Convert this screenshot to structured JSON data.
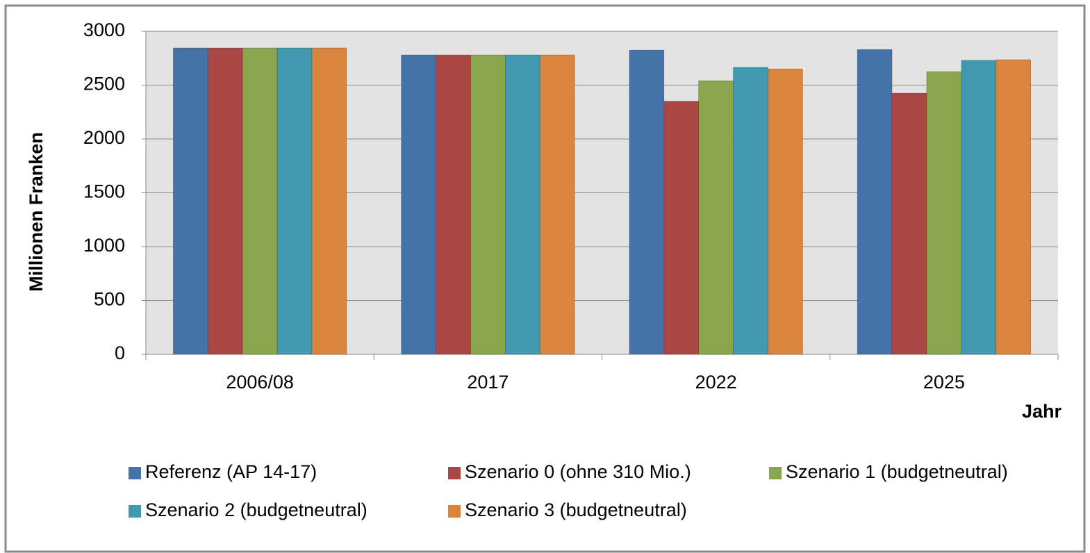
{
  "chart_data": {
    "type": "bar",
    "x_label": "Jahr",
    "y_label": "Millionen Franken",
    "categories": [
      "2006/08",
      "2017",
      "2022",
      "2025"
    ],
    "series": [
      {
        "name": "Referenz (AP 14-17)",
        "color": "#4572a7",
        "values": [
          2845,
          2780,
          2825,
          2830
        ]
      },
      {
        "name": "Szenario 0 (ohne 310 Mio.)",
        "color": "#aa4643",
        "values": [
          2845,
          2780,
          2350,
          2425
        ]
      },
      {
        "name": "Szenario 1 (budgetneutral)",
        "color": "#89a54e",
        "values": [
          2845,
          2780,
          2540,
          2625
        ]
      },
      {
        "name": "Szenario 2 (budgetneutral)",
        "color": "#4198af",
        "values": [
          2845,
          2780,
          2665,
          2730
        ]
      },
      {
        "name": "Szenario 3 (budgetneutral)",
        "color": "#db843d",
        "values": [
          2845,
          2780,
          2650,
          2735
        ]
      }
    ],
    "ylim": [
      0,
      3000
    ],
    "yticks": [
      0,
      500,
      1000,
      1500,
      2000,
      2500,
      3000
    ],
    "grid": true
  }
}
